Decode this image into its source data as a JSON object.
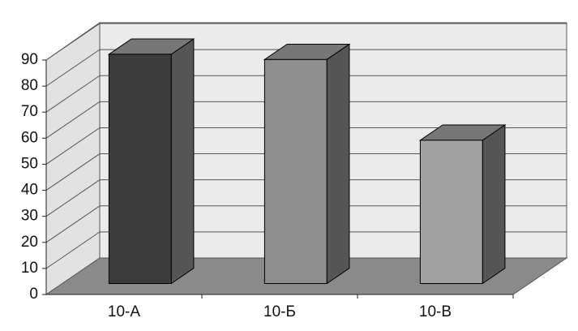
{
  "chart_data": {
    "type": "bar3d",
    "categories": [
      "10-А",
      "10-Б",
      "10-В"
    ],
    "values": [
      88,
      86,
      55
    ],
    "colors": [
      "#3c3c3c",
      "#8e8e8e",
      "#a2a2a2"
    ],
    "ylim": [
      0,
      90
    ],
    "yticks": [
      0,
      10,
      20,
      30,
      40,
      50,
      60,
      70,
      80,
      90
    ],
    "grid": true
  }
}
